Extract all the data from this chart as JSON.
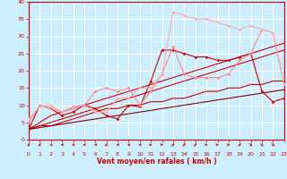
{
  "background_color": "#cceeff",
  "grid_color": "#ffffff",
  "xlabel": "Vent moyen/en rafales ( km/h )",
  "xlabel_color": "#cc0000",
  "tick_color": "#cc0000",
  "spine_color": "#cc0000",
  "xlim": [
    0,
    23
  ],
  "ylim": [
    0,
    40
  ],
  "xticks": [
    0,
    1,
    2,
    3,
    4,
    5,
    6,
    7,
    8,
    9,
    10,
    11,
    12,
    13,
    14,
    15,
    16,
    17,
    18,
    19,
    20,
    21,
    22,
    23
  ],
  "yticks": [
    0,
    5,
    10,
    15,
    20,
    25,
    30,
    35,
    40
  ],
  "lines": [
    {
      "x": [
        0,
        1,
        2,
        3,
        4,
        5,
        6,
        7,
        8,
        9,
        10,
        11,
        12,
        13,
        14,
        15,
        16,
        17,
        18,
        19,
        20,
        21,
        22,
        23
      ],
      "y": [
        3,
        4,
        4,
        5,
        6,
        7,
        8,
        9,
        9,
        10,
        10,
        11,
        11,
        12,
        12,
        13,
        14,
        14,
        15,
        15,
        16,
        16,
        17,
        17
      ],
      "color": "#cc0000",
      "lw": 0.8,
      "marker": null,
      "alpha": 1.0
    },
    {
      "x": [
        0,
        1,
        2,
        3,
        4,
        5,
        6,
        7,
        8,
        9,
        10,
        11,
        12,
        13,
        14,
        15,
        16,
        17,
        18,
        19,
        20,
        21,
        22,
        23
      ],
      "y": [
        3,
        4,
        5,
        6,
        7,
        8,
        9,
        10,
        11,
        12,
        13,
        14,
        15,
        16,
        17,
        18,
        19,
        20,
        21,
        22,
        23,
        24,
        25,
        26
      ],
      "color": "#cc0000",
      "lw": 0.8,
      "marker": null,
      "alpha": 1.0
    },
    {
      "x": [
        0,
        1,
        2,
        3,
        4,
        5,
        6,
        7,
        8,
        9,
        10,
        11,
        12,
        13,
        14,
        15,
        16,
        17,
        18,
        19,
        20,
        21,
        22,
        23
      ],
      "y": [
        3,
        5,
        7,
        8,
        9,
        10,
        11,
        12,
        13,
        14,
        15,
        16,
        17,
        18,
        19,
        20,
        21,
        22,
        23,
        24,
        25,
        26,
        27,
        28
      ],
      "color": "#cc0000",
      "lw": 0.8,
      "marker": null,
      "alpha": 1.0
    },
    {
      "x": [
        0,
        1,
        2,
        3,
        4,
        5,
        6,
        7,
        8,
        9,
        10,
        11,
        12,
        13,
        14,
        15,
        16,
        17,
        18,
        19,
        20,
        21,
        22,
        23
      ],
      "y": [
        3,
        3.5,
        4,
        4.5,
        5,
        5.5,
        6,
        6.5,
        7,
        7.5,
        8,
        8.5,
        9,
        9.5,
        10,
        10.5,
        11,
        11.5,
        12,
        12.5,
        13,
        13.5,
        14,
        14.5
      ],
      "color": "#880000",
      "lw": 0.8,
      "marker": null,
      "alpha": 1.0
    },
    {
      "x": [
        0,
        1,
        2,
        3,
        4,
        5,
        6,
        7,
        8,
        9,
        10,
        11,
        12,
        13,
        14,
        15,
        16,
        17,
        18,
        19,
        20,
        21,
        22,
        23
      ],
      "y": [
        3,
        10,
        9,
        7,
        8,
        10,
        9,
        7,
        6,
        10,
        9.5,
        17,
        26,
        26,
        25,
        24,
        24,
        23,
        23,
        24,
        25,
        14,
        11,
        12
      ],
      "color": "#cc0000",
      "lw": 0.8,
      "marker": "D",
      "ms": 1.8,
      "alpha": 1.0
    },
    {
      "x": [
        0,
        1,
        2,
        3,
        4,
        5,
        6,
        7,
        8,
        9,
        10,
        11,
        12,
        13,
        14,
        15,
        16,
        17,
        18,
        19,
        20,
        21,
        22,
        23
      ],
      "y": [
        5,
        10,
        9,
        8,
        9.5,
        10,
        14,
        15,
        14,
        15,
        10,
        14,
        19,
        27,
        19,
        18,
        18,
        18,
        19,
        23,
        25,
        32,
        31,
        16
      ],
      "color": "#ff8888",
      "lw": 0.8,
      "marker": "D",
      "ms": 1.8,
      "alpha": 1.0
    },
    {
      "x": [
        0,
        1,
        2,
        3,
        4,
        5,
        6,
        7,
        8,
        9,
        10,
        11,
        12,
        13,
        14,
        15,
        16,
        17,
        18,
        19,
        20,
        21,
        22,
        23
      ],
      "y": [
        6,
        9.5,
        10,
        8,
        9,
        10,
        8,
        8,
        12,
        12,
        15,
        15,
        19,
        37,
        36,
        35,
        35,
        34,
        33,
        32,
        33,
        32,
        31,
        16
      ],
      "color": "#ffaaaa",
      "lw": 0.8,
      "marker": "D",
      "ms": 1.8,
      "alpha": 1.0
    }
  ],
  "wind_arrows": [
    [
      0,
      225
    ],
    [
      1,
      225
    ],
    [
      2,
      270
    ],
    [
      3,
      270
    ],
    [
      4,
      270
    ],
    [
      5,
      270
    ],
    [
      6,
      270
    ],
    [
      7,
      225
    ],
    [
      8,
      270
    ],
    [
      9,
      270
    ],
    [
      10,
      270
    ],
    [
      11,
      90
    ],
    [
      12,
      90
    ],
    [
      13,
      45
    ],
    [
      14,
      45
    ],
    [
      15,
      45
    ],
    [
      16,
      90
    ],
    [
      17,
      90
    ],
    [
      18,
      90
    ],
    [
      19,
      45
    ],
    [
      20,
      135
    ],
    [
      21,
      135
    ],
    [
      22,
      135
    ]
  ]
}
